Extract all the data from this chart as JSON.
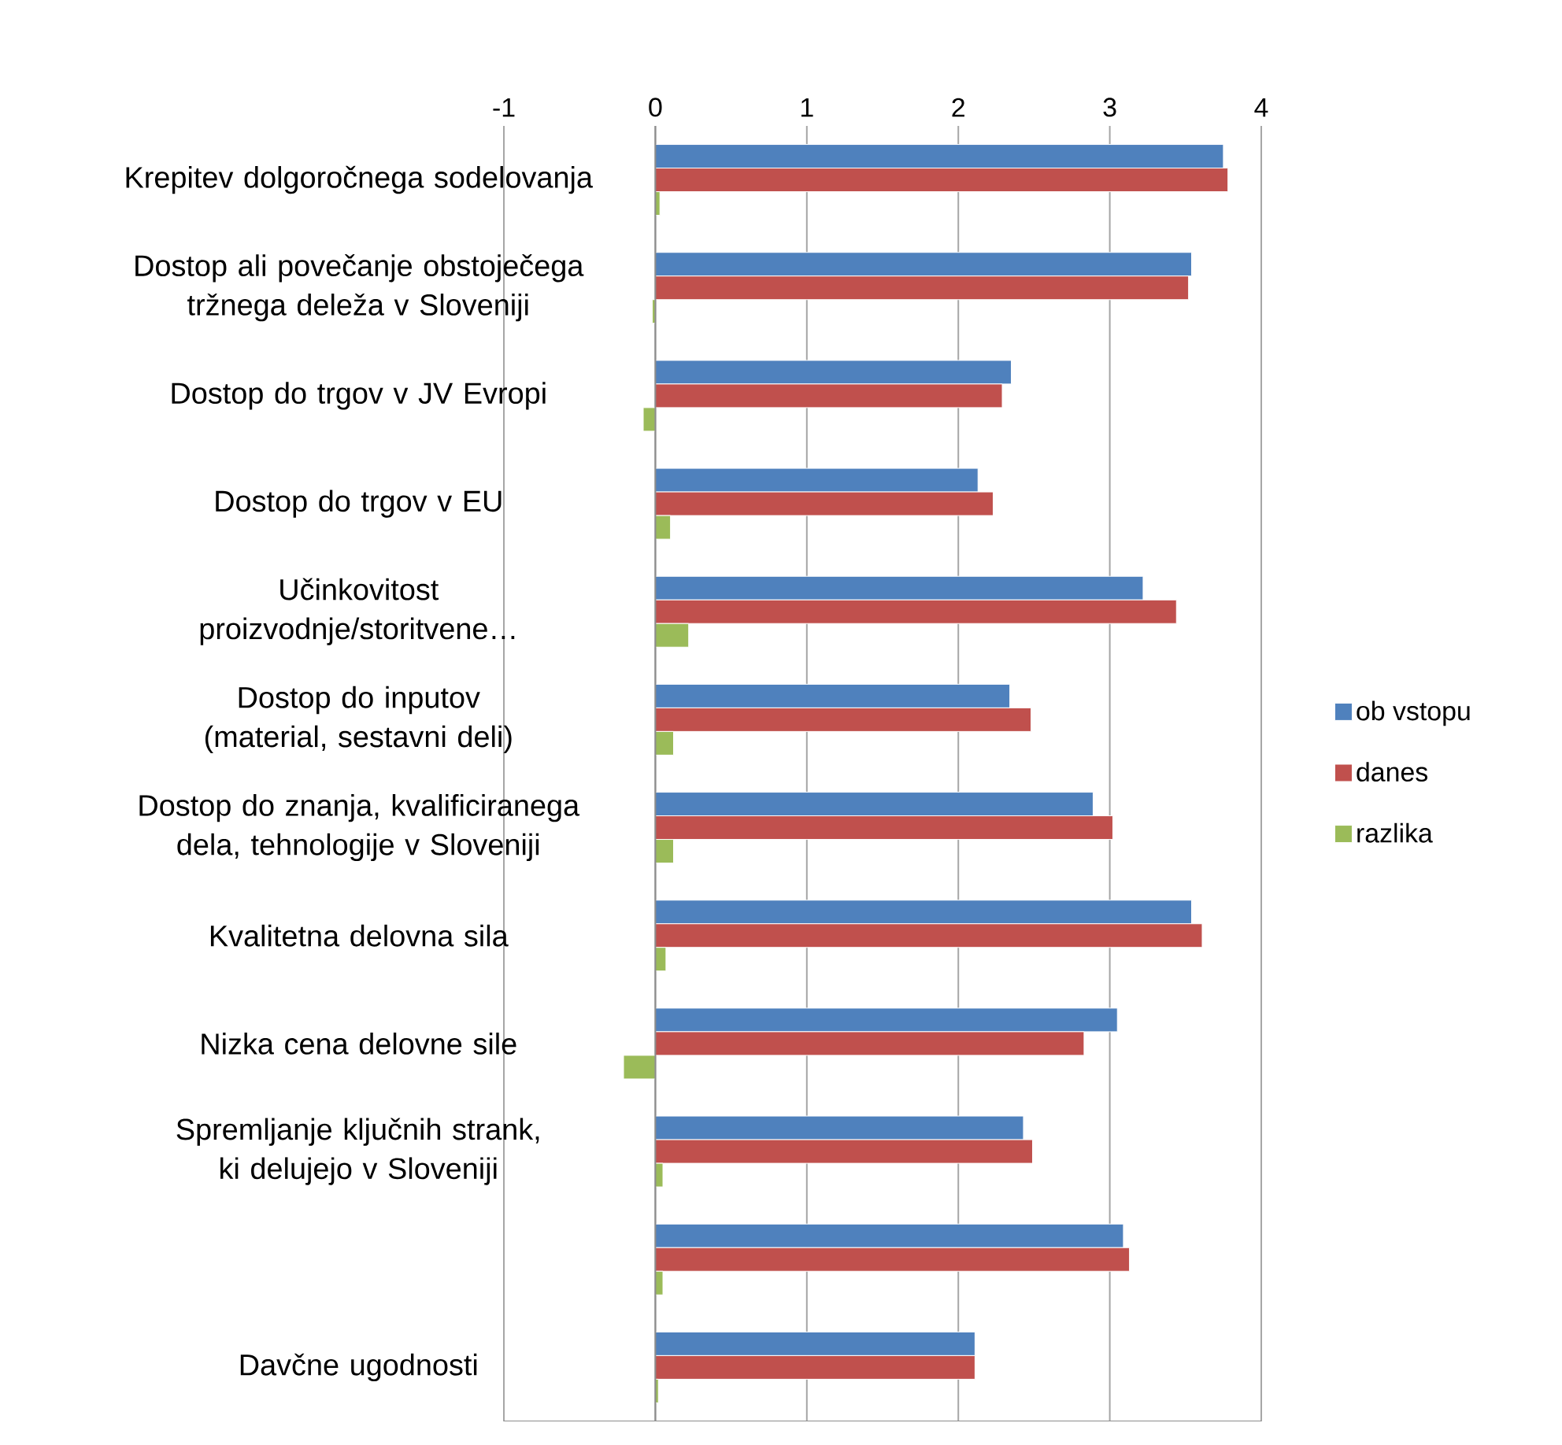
{
  "chart_data": {
    "type": "bar",
    "orientation": "horizontal",
    "categories": [
      "Krepitev dolgoročnega sodelovanja",
      "Dostop ali povečanje obstoječega tržnega deleža v Sloveniji",
      "Dostop do trgov v JV Evropi",
      "Dostop do trgov v EU",
      "Učinkovitost proizvodnje/storitvene…",
      "Dostop do inputov (material, sestavni deli)",
      "Dostop do znanja, kvalificiranega dela, tehnologije v Sloveniji",
      "Kvalitetna delovna sila",
      "Nizka cena delovne sile",
      "Spremljanje ključnih strank, ki delujejo v Sloveniji",
      null,
      "Davčne ugodnosti"
    ],
    "series": [
      {
        "name": "ob vstopu",
        "color": "#4f81bd",
        "values": [
          3.75,
          3.54,
          2.35,
          2.13,
          3.22,
          2.34,
          2.89,
          3.54,
          3.05,
          2.43,
          3.09,
          2.11
        ]
      },
      {
        "name": "danes",
        "color": "#c0504d",
        "values": [
          3.78,
          3.52,
          2.29,
          2.23,
          3.44,
          2.48,
          3.02,
          3.61,
          2.83,
          2.49,
          3.13,
          2.11
        ]
      },
      {
        "name": "razlika",
        "color": "#9bbb59",
        "values": [
          0.03,
          -0.02,
          -0.08,
          0.1,
          0.22,
          0.12,
          0.12,
          0.07,
          -0.21,
          0.05,
          0.05,
          0.02
        ]
      }
    ],
    "xlim": [
      -1,
      4
    ],
    "xticks": [
      -1,
      0,
      1,
      2,
      3,
      4
    ],
    "grid": "x",
    "legend": "right"
  }
}
